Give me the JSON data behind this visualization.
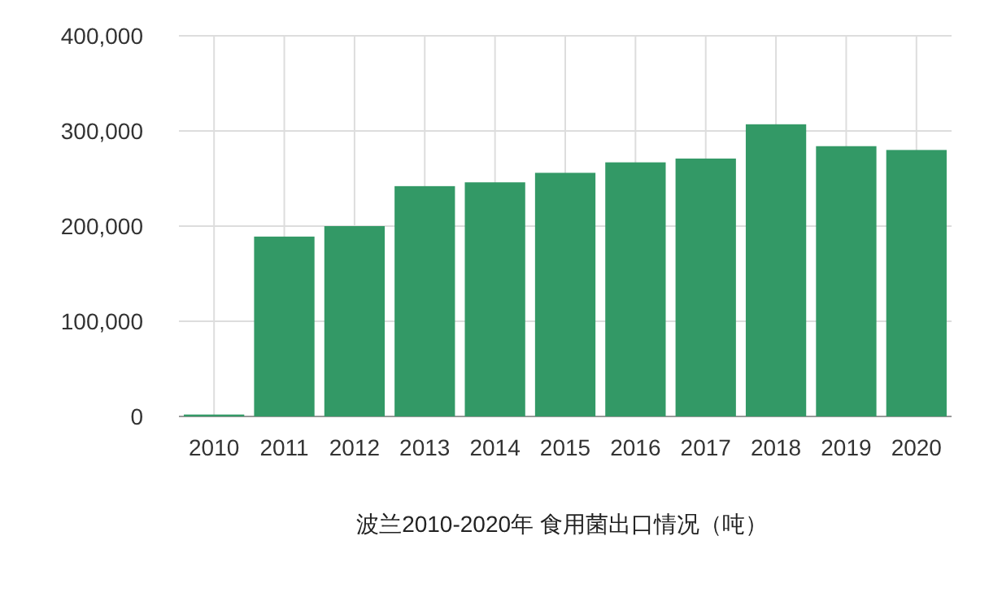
{
  "chart_data": {
    "type": "bar",
    "xlabel": "波兰2010-2020年 食用菌出口情况（吨）",
    "categories": [
      "2010",
      "2011",
      "2012",
      "2013",
      "2014",
      "2015",
      "2016",
      "2017",
      "2018",
      "2019",
      "2020"
    ],
    "values": [
      2000,
      189000,
      200000,
      242000,
      246000,
      256000,
      267000,
      271000,
      307000,
      284000,
      280000
    ],
    "color": "#339966",
    "ylim": [
      0,
      400000
    ],
    "yticks": [
      {
        "value": 0,
        "label": "0"
      },
      {
        "value": 100000,
        "label": "100,000"
      },
      {
        "value": 200000,
        "label": "200,000"
      },
      {
        "value": 300000,
        "label": "300,000"
      },
      {
        "value": 400000,
        "label": "400,000"
      }
    ],
    "grid": true
  }
}
